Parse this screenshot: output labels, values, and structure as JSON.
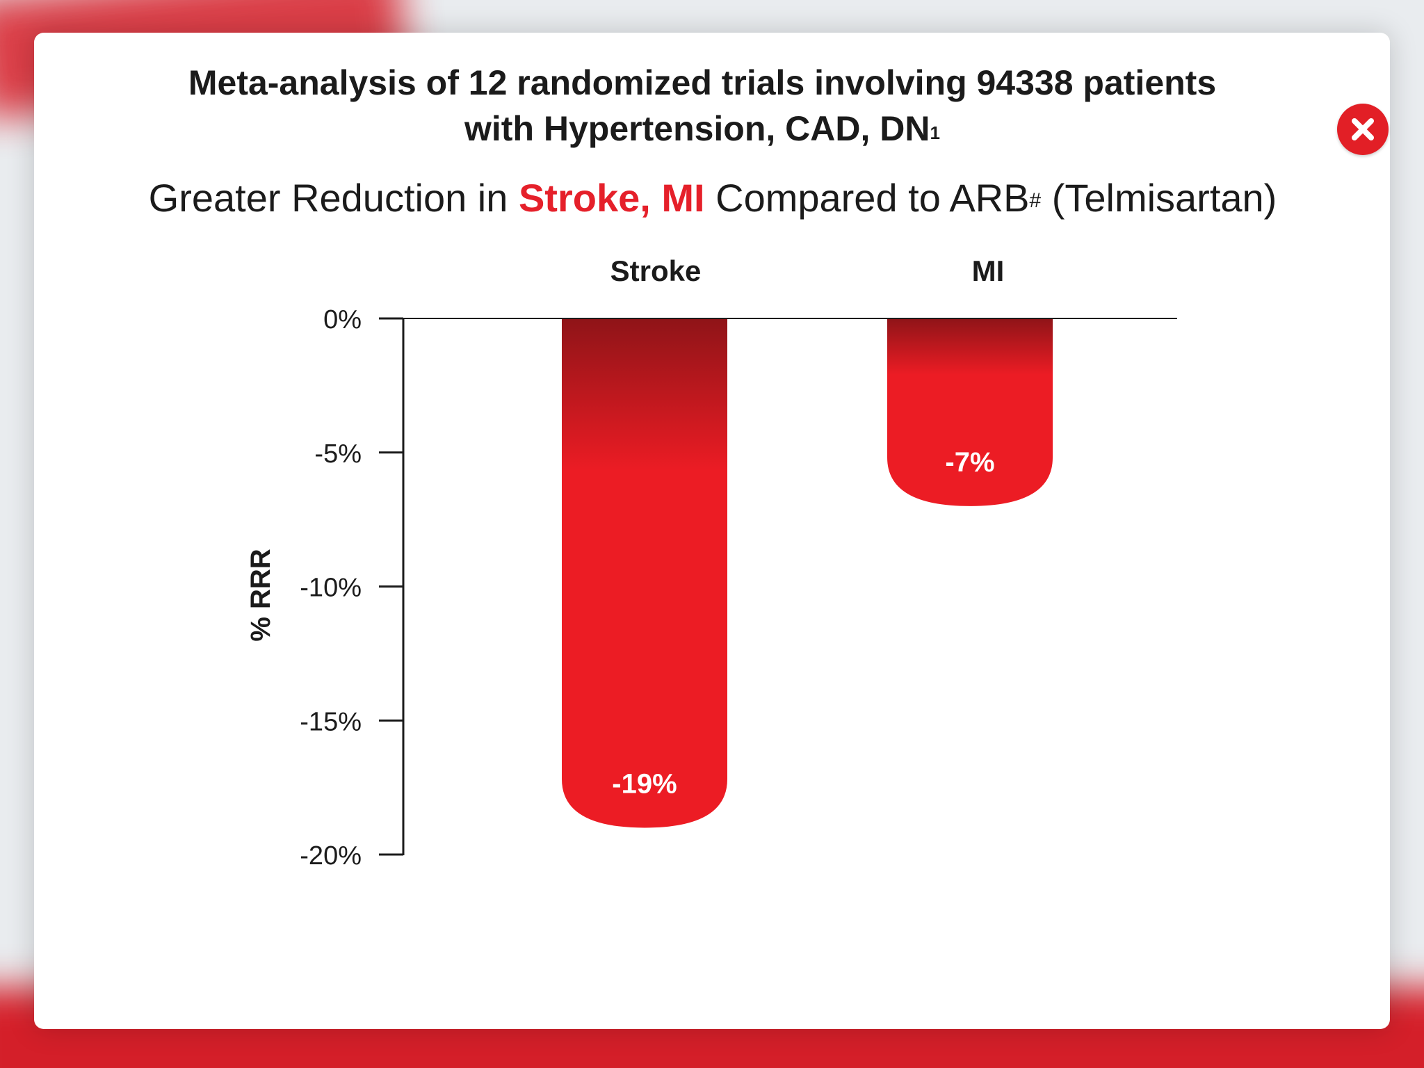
{
  "modal": {
    "heading_line1": "Meta-analysis of 12 randomized trials involving 94338 patients",
    "heading_line2": "with Hypertension, CAD, DN",
    "heading_sup": "1",
    "sub_prefix": "Greater Reduction in ",
    "sub_highlight": "Stroke, MI",
    "sub_mid": " Compared to ARB",
    "sub_sup": "#",
    "sub_suffix": " (Telmisartan)",
    "close_icon": "close-x-circle-icon",
    "accent_color": "#e5202a"
  },
  "chart_data": {
    "type": "bar",
    "categories": [
      "Stroke",
      "MI"
    ],
    "values": [
      -19,
      -7
    ],
    "value_labels": [
      "-19%",
      "-7%"
    ],
    "ylabel": "% RRR",
    "ylim": [
      -20,
      0
    ],
    "yticks": [
      0,
      -5,
      -10,
      -15,
      -20
    ],
    "ytick_labels": [
      "0%",
      "-5%",
      "-10%",
      "-15%",
      "-20%"
    ],
    "bar_color": "#ec1c24",
    "bar_top_color": "#8f1418",
    "grid": false
  }
}
